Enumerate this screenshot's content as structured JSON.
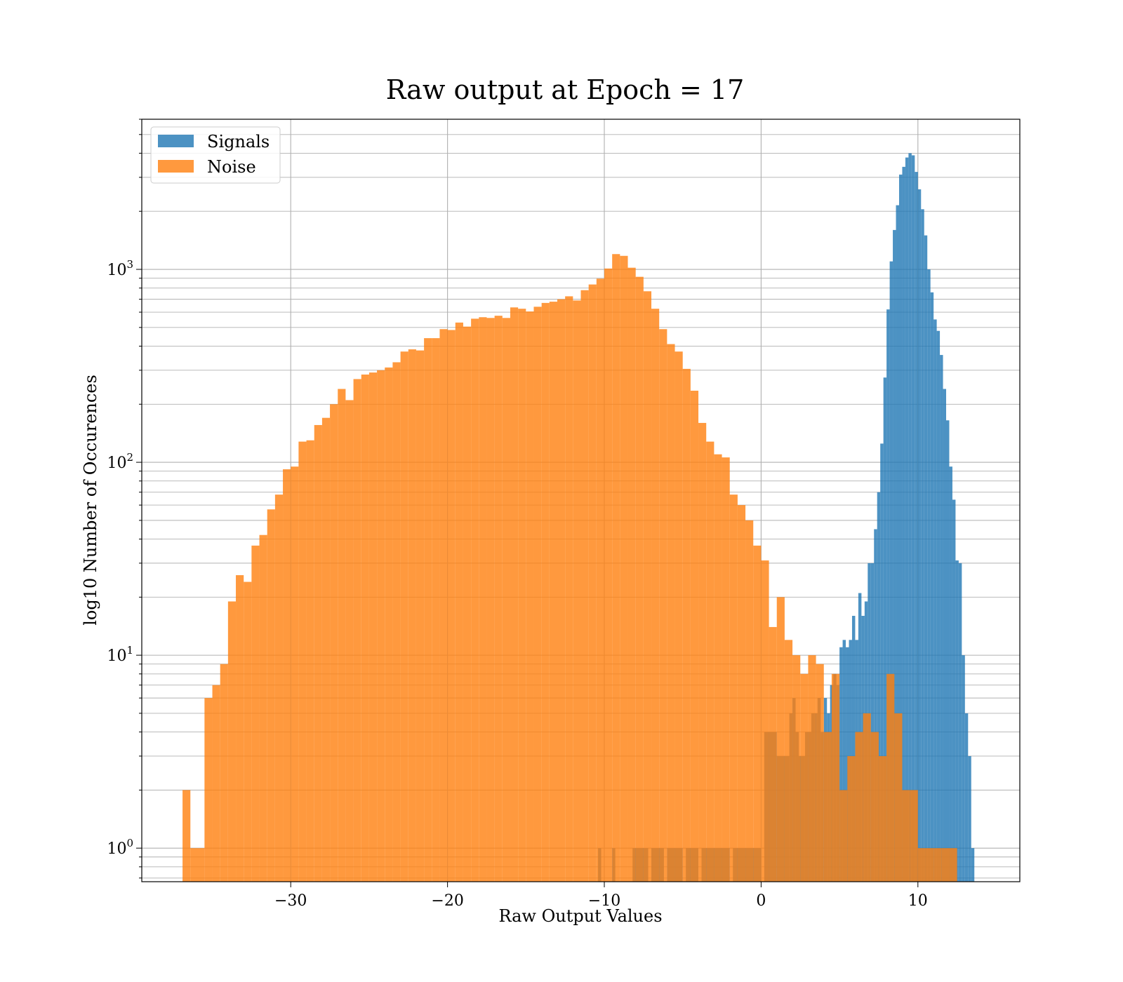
{
  "chart_data": {
    "type": "histogram",
    "title": "Raw output at Epoch = 17",
    "xlabel": "Raw Output Values",
    "ylabel": "log10 Number of Occurences",
    "xlim": [
      -39.5,
      16.5
    ],
    "ylim": [
      0.67,
      6000
    ],
    "yscale": "log",
    "grid": true,
    "legend_placement": "top-left",
    "x_ticks": [
      -30,
      -20,
      -10,
      0,
      10
    ],
    "x_tick_labels": [
      "−30",
      "−20",
      "−10",
      "0",
      "10"
    ],
    "y_ticks": [
      1,
      10,
      100,
      1000
    ],
    "y_tick_labels": [
      {
        "base": "10",
        "exp": "0"
      },
      {
        "base": "10",
        "exp": "1"
      },
      {
        "base": "10",
        "exp": "2"
      },
      {
        "base": "10",
        "exp": "3"
      }
    ],
    "series": [
      {
        "name": "Signals",
        "color": "#1f77b4",
        "opacity": 0.8,
        "bins": [
          [
            -10.4,
            -10.2,
            1
          ],
          [
            -9.5,
            -9.3,
            1
          ],
          [
            -8.2,
            -7.2,
            1
          ],
          [
            -7.0,
            -6.2,
            1
          ],
          [
            -6.0,
            -5.0,
            1
          ],
          [
            -4.8,
            -4.0,
            1
          ],
          [
            -3.8,
            -2.0,
            1
          ],
          [
            -1.8,
            0.0,
            1
          ],
          [
            0.2,
            1.0,
            4
          ],
          [
            1.0,
            1.8,
            3
          ],
          [
            1.8,
            2.0,
            5
          ],
          [
            2.0,
            2.2,
            6
          ],
          [
            2.2,
            2.4,
            4
          ],
          [
            2.4,
            2.6,
            3
          ],
          [
            2.6,
            2.8,
            3
          ],
          [
            2.8,
            3.0,
            4
          ],
          [
            3.0,
            3.2,
            4
          ],
          [
            3.2,
            3.4,
            5
          ],
          [
            3.4,
            3.6,
            5
          ],
          [
            3.6,
            3.8,
            6
          ],
          [
            3.8,
            4.0,
            4
          ],
          [
            4.0,
            4.2,
            6
          ],
          [
            4.2,
            4.4,
            5
          ],
          [
            4.4,
            4.6,
            7
          ],
          [
            4.6,
            4.8,
            8
          ],
          [
            4.8,
            5.0,
            7
          ],
          [
            5.0,
            5.2,
            11
          ],
          [
            5.2,
            5.4,
            12
          ],
          [
            5.4,
            5.6,
            11
          ],
          [
            5.6,
            5.8,
            12
          ],
          [
            5.8,
            6.0,
            16
          ],
          [
            6.0,
            6.2,
            12
          ],
          [
            6.2,
            6.4,
            21
          ],
          [
            6.4,
            6.6,
            16
          ],
          [
            6.6,
            6.8,
            19
          ],
          [
            6.8,
            7.0,
            30
          ],
          [
            7.0,
            7.2,
            30
          ],
          [
            7.2,
            7.4,
            45
          ],
          [
            7.4,
            7.6,
            70
          ],
          [
            7.6,
            7.8,
            125
          ],
          [
            7.8,
            8.0,
            275
          ],
          [
            8.0,
            8.2,
            620
          ],
          [
            8.2,
            8.4,
            1100
          ],
          [
            8.4,
            8.6,
            1600
          ],
          [
            8.6,
            8.8,
            2150
          ],
          [
            8.8,
            9.0,
            3100
          ],
          [
            9.0,
            9.2,
            3400
          ],
          [
            9.2,
            9.4,
            3800
          ],
          [
            9.4,
            9.6,
            4000
          ],
          [
            9.6,
            9.8,
            3900
          ],
          [
            9.8,
            10.0,
            3200
          ],
          [
            10.0,
            10.2,
            2600
          ],
          [
            10.2,
            10.4,
            2050
          ],
          [
            10.4,
            10.6,
            1500
          ],
          [
            10.6,
            10.8,
            1000
          ],
          [
            10.8,
            11.0,
            760
          ],
          [
            11.0,
            11.2,
            550
          ],
          [
            11.2,
            11.4,
            480
          ],
          [
            11.4,
            11.6,
            360
          ],
          [
            11.6,
            11.8,
            240
          ],
          [
            11.8,
            12.0,
            165
          ],
          [
            12.0,
            12.2,
            95
          ],
          [
            12.2,
            12.4,
            64
          ],
          [
            12.4,
            12.6,
            31
          ],
          [
            12.6,
            12.8,
            30
          ],
          [
            12.8,
            13.0,
            10
          ],
          [
            13.0,
            13.2,
            5
          ],
          [
            13.2,
            13.4,
            3
          ],
          [
            13.4,
            13.6,
            1
          ]
        ]
      },
      {
        "name": "Noise",
        "color": "#ff7f0e",
        "opacity": 0.8,
        "bins": [
          [
            -36.9,
            -36.4,
            2
          ],
          [
            -36.4,
            -35.5,
            1
          ],
          [
            -35.5,
            -35.0,
            6
          ],
          [
            -35.0,
            -34.5,
            7
          ],
          [
            -34.5,
            -34.0,
            9
          ],
          [
            -34.0,
            -33.5,
            19
          ],
          [
            -33.5,
            -33.0,
            26
          ],
          [
            -33.0,
            -32.5,
            24
          ],
          [
            -32.5,
            -32.0,
            37
          ],
          [
            -32.0,
            -31.5,
            42
          ],
          [
            -31.5,
            -31.0,
            57
          ],
          [
            -31.0,
            -30.5,
            68
          ],
          [
            -30.5,
            -30.0,
            92
          ],
          [
            -30.0,
            -29.5,
            95
          ],
          [
            -29.5,
            -29.0,
            128
          ],
          [
            -29.0,
            -28.5,
            130
          ],
          [
            -28.5,
            -28.0,
            156
          ],
          [
            -28.0,
            -27.5,
            170
          ],
          [
            -27.5,
            -27.0,
            200
          ],
          [
            -27.0,
            -26.5,
            240
          ],
          [
            -26.5,
            -26.0,
            210
          ],
          [
            -26.0,
            -25.5,
            270
          ],
          [
            -25.5,
            -25.0,
            285
          ],
          [
            -25.0,
            -24.5,
            292
          ],
          [
            -24.5,
            -24.0,
            300
          ],
          [
            -24.0,
            -23.5,
            310
          ],
          [
            -23.5,
            -23.0,
            330
          ],
          [
            -23.0,
            -22.5,
            375
          ],
          [
            -22.5,
            -22.0,
            385
          ],
          [
            -22.0,
            -21.5,
            380
          ],
          [
            -21.5,
            -21.0,
            440
          ],
          [
            -21.0,
            -20.5,
            440
          ],
          [
            -20.5,
            -20.0,
            490
          ],
          [
            -20.0,
            -19.5,
            485
          ],
          [
            -19.5,
            -19.0,
            530
          ],
          [
            -19.0,
            -18.5,
            505
          ],
          [
            -18.5,
            -18.0,
            555
          ],
          [
            -18.0,
            -17.5,
            565
          ],
          [
            -17.5,
            -17.0,
            560
          ],
          [
            -17.0,
            -16.5,
            575
          ],
          [
            -16.5,
            -16.0,
            560
          ],
          [
            -16.0,
            -15.5,
            635
          ],
          [
            -15.5,
            -15.0,
            625
          ],
          [
            -15.0,
            -14.5,
            605
          ],
          [
            -14.5,
            -14.0,
            640
          ],
          [
            -14.0,
            -13.5,
            670
          ],
          [
            -13.5,
            -13.0,
            680
          ],
          [
            -13.0,
            -12.5,
            700
          ],
          [
            -12.5,
            -12.0,
            725
          ],
          [
            -12.0,
            -11.5,
            690
          ],
          [
            -11.5,
            -11.0,
            780
          ],
          [
            -11.0,
            -10.5,
            835
          ],
          [
            -10.5,
            -10.0,
            895
          ],
          [
            -10.0,
            -9.5,
            1010
          ],
          [
            -9.5,
            -9.0,
            1200
          ],
          [
            -9.0,
            -8.5,
            1175
          ],
          [
            -8.5,
            -8.0,
            1020
          ],
          [
            -8.0,
            -7.5,
            915
          ],
          [
            -7.5,
            -7.0,
            770
          ],
          [
            -7.0,
            -6.5,
            625
          ],
          [
            -6.5,
            -6.0,
            490
          ],
          [
            -6.0,
            -5.5,
            410
          ],
          [
            -5.5,
            -5.0,
            375
          ],
          [
            -5.0,
            -4.5,
            305
          ],
          [
            -4.5,
            -4.0,
            235
          ],
          [
            -4.0,
            -3.5,
            160
          ],
          [
            -3.5,
            -3.0,
            128
          ],
          [
            -3.0,
            -2.5,
            110
          ],
          [
            -2.5,
            -2.0,
            106
          ],
          [
            -2.0,
            -1.5,
            68
          ],
          [
            -1.5,
            -1.0,
            60
          ],
          [
            -1.0,
            -0.5,
            50
          ],
          [
            -0.5,
            0.0,
            37
          ],
          [
            0.0,
            0.5,
            31
          ],
          [
            0.5,
            1.0,
            14
          ],
          [
            1.0,
            1.5,
            20
          ],
          [
            1.5,
            2.0,
            12
          ],
          [
            2.0,
            2.5,
            10
          ],
          [
            2.5,
            3.0,
            8
          ],
          [
            3.0,
            3.5,
            10
          ],
          [
            3.5,
            4.0,
            9
          ],
          [
            4.0,
            4.5,
            4
          ],
          [
            4.5,
            5.0,
            8
          ],
          [
            5.0,
            5.5,
            2
          ],
          [
            5.5,
            6.0,
            3
          ],
          [
            6.0,
            6.5,
            4
          ],
          [
            6.5,
            7.0,
            5
          ],
          [
            7.0,
            7.5,
            4
          ],
          [
            7.5,
            8.0,
            3
          ],
          [
            8.0,
            8.5,
            8
          ],
          [
            8.5,
            9.0,
            5
          ],
          [
            9.0,
            9.5,
            2
          ],
          [
            9.5,
            10.0,
            2
          ],
          [
            10.0,
            10.5,
            1
          ],
          [
            10.5,
            11.0,
            1
          ],
          [
            11.0,
            11.5,
            1
          ],
          [
            11.5,
            12.0,
            1
          ],
          [
            12.0,
            12.5,
            1
          ]
        ]
      }
    ]
  }
}
